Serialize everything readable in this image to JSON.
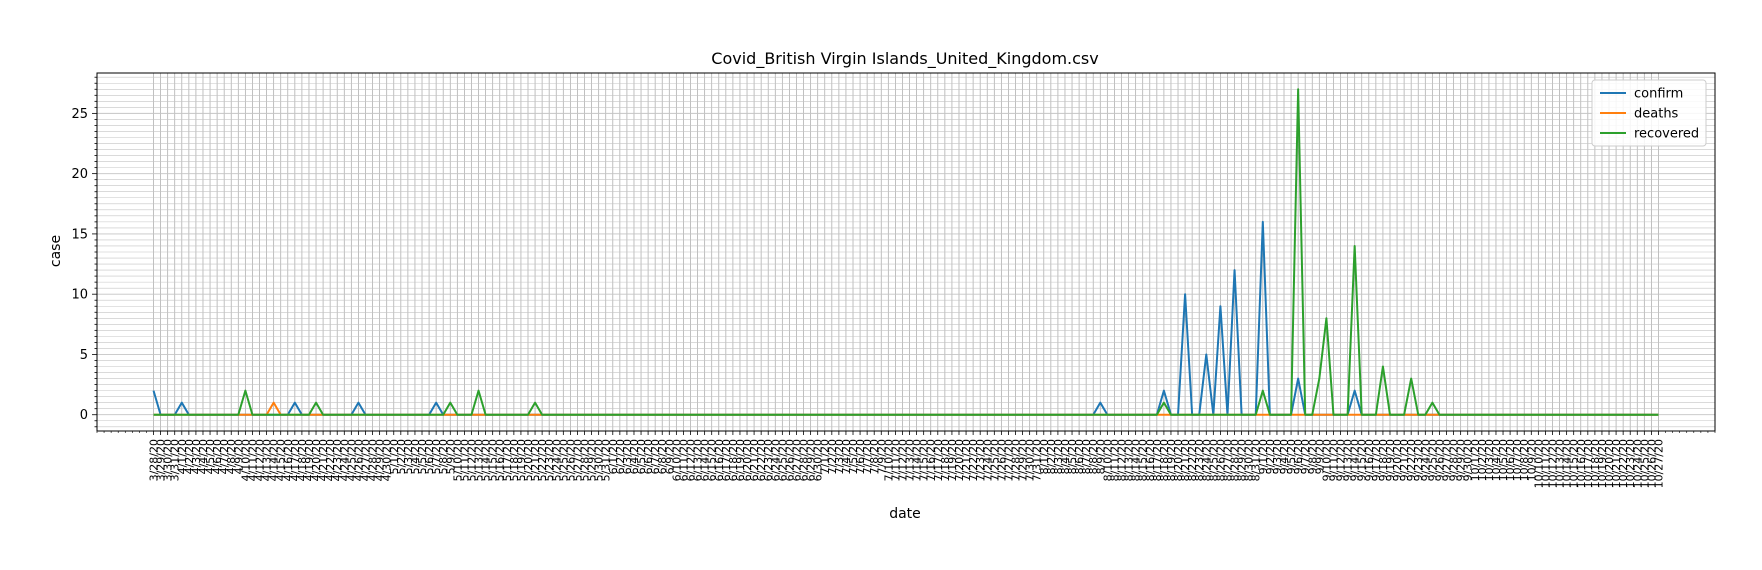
{
  "chart_data": {
    "type": "line",
    "title": "Covid_British Virgin Islands_United_Kingdom.csv",
    "xlabel": "date",
    "ylabel": "case",
    "ylim": [
      -1.35,
      28.35
    ],
    "yticks": [
      0,
      5,
      10,
      15,
      20,
      25
    ],
    "grid": true,
    "legend_position": "top-right",
    "x_start": "2020-03-28",
    "x_end": "2020-10-27",
    "series": [
      {
        "name": "confirm",
        "color": "#1f77b4",
        "points": [
          [
            "2020-03-28",
            2
          ],
          [
            "2020-03-29",
            0
          ],
          [
            "2020-03-31",
            0
          ],
          [
            "2020-04-01",
            1
          ],
          [
            "2020-04-02",
            0
          ],
          [
            "2020-04-16",
            0
          ],
          [
            "2020-04-17",
            1
          ],
          [
            "2020-04-18",
            0
          ],
          [
            "2020-04-25",
            0
          ],
          [
            "2020-04-26",
            1
          ],
          [
            "2020-04-27",
            0
          ],
          [
            "2020-05-06",
            0
          ],
          [
            "2020-05-07",
            1
          ],
          [
            "2020-05-08",
            0
          ],
          [
            "2020-08-08",
            0
          ],
          [
            "2020-08-09",
            1
          ],
          [
            "2020-08-10",
            0
          ],
          [
            "2020-08-17",
            0
          ],
          [
            "2020-08-18",
            2
          ],
          [
            "2020-08-19",
            0
          ],
          [
            "2020-08-20",
            0
          ],
          [
            "2020-08-21",
            10
          ],
          [
            "2020-08-22",
            0
          ],
          [
            "2020-08-23",
            0
          ],
          [
            "2020-08-24",
            5
          ],
          [
            "2020-08-25",
            0
          ],
          [
            "2020-08-25",
            0
          ],
          [
            "2020-08-26",
            9
          ],
          [
            "2020-08-27",
            0
          ],
          [
            "2020-08-28",
            12
          ],
          [
            "2020-08-29",
            0
          ],
          [
            "2020-08-30",
            0
          ],
          [
            "2020-08-31",
            0
          ],
          [
            "2020-09-01",
            16
          ],
          [
            "2020-09-02",
            0
          ],
          [
            "2020-09-05",
            0
          ],
          [
            "2020-09-06",
            3
          ],
          [
            "2020-09-07",
            0
          ],
          [
            "2020-09-13",
            0
          ],
          [
            "2020-09-14",
            2
          ],
          [
            "2020-09-15",
            0
          ],
          [
            "2020-10-27",
            0
          ]
        ]
      },
      {
        "name": "deaths",
        "color": "#ff7f0e",
        "points": [
          [
            "2020-03-28",
            0
          ],
          [
            "2020-04-13",
            0
          ],
          [
            "2020-04-14",
            1
          ],
          [
            "2020-04-15",
            0
          ],
          [
            "2020-10-27",
            0
          ]
        ]
      },
      {
        "name": "recovered",
        "color": "#2ca02c",
        "points": [
          [
            "2020-03-28",
            0
          ],
          [
            "2020-04-09",
            0
          ],
          [
            "2020-04-10",
            2
          ],
          [
            "2020-04-11",
            0
          ],
          [
            "2020-04-19",
            0
          ],
          [
            "2020-04-20",
            1
          ],
          [
            "2020-04-21",
            0
          ],
          [
            "2020-05-08",
            0
          ],
          [
            "2020-05-09",
            1
          ],
          [
            "2020-05-10",
            0
          ],
          [
            "2020-05-12",
            0
          ],
          [
            "2020-05-13",
            2
          ],
          [
            "2020-05-14",
            0
          ],
          [
            "2020-05-20",
            0
          ],
          [
            "2020-05-21",
            1
          ],
          [
            "2020-05-22",
            0
          ],
          [
            "2020-08-17",
            0
          ],
          [
            "2020-08-18",
            1
          ],
          [
            "2020-08-19",
            0
          ],
          [
            "2020-08-31",
            0
          ],
          [
            "2020-09-01",
            2
          ],
          [
            "2020-09-02",
            0
          ],
          [
            "2020-09-05",
            0
          ],
          [
            "2020-09-06",
            27
          ],
          [
            "2020-09-07",
            0
          ],
          [
            "2020-09-08",
            0
          ],
          [
            "2020-09-09",
            3
          ],
          [
            "2020-09-10",
            8
          ],
          [
            "2020-09-11",
            0
          ],
          [
            "2020-09-13",
            0
          ],
          [
            "2020-09-14",
            14
          ],
          [
            "2020-09-15",
            0
          ],
          [
            "2020-09-17",
            0
          ],
          [
            "2020-09-18",
            4
          ],
          [
            "2020-09-19",
            0
          ],
          [
            "2020-09-21",
            0
          ],
          [
            "2020-09-22",
            3
          ],
          [
            "2020-09-23",
            0
          ],
          [
            "2020-09-24",
            0
          ],
          [
            "2020-09-25",
            1
          ],
          [
            "2020-09-26",
            0
          ],
          [
            "2020-10-27",
            0
          ]
        ]
      }
    ]
  }
}
